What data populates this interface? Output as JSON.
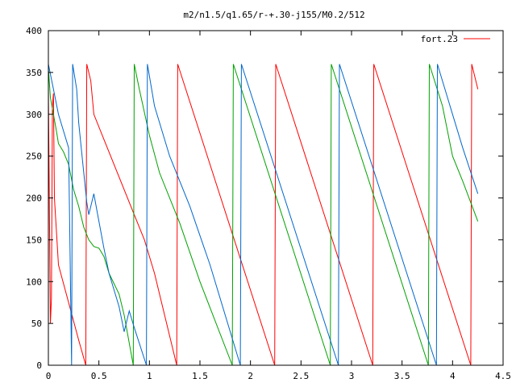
{
  "chart_data": {
    "type": "line",
    "title": "m2/n1.5/q1.65/r-+.30-j155/M0.2/512",
    "xlabel": "",
    "ylabel": "",
    "xlim": [
      0,
      4.5
    ],
    "ylim": [
      0,
      400
    ],
    "xticks": [
      0,
      0.5,
      1,
      1.5,
      2,
      2.5,
      3,
      3.5,
      4,
      4.5
    ],
    "xtick_labels": [
      "0",
      "0.5",
      "1",
      "1.5",
      "2",
      "2.5",
      "3",
      "3.5",
      "4",
      "4.5"
    ],
    "yticks": [
      0,
      50,
      100,
      150,
      200,
      250,
      300,
      350,
      400
    ],
    "ytick_labels": [
      "0",
      "50",
      "100",
      "150",
      "200",
      "250",
      "300",
      "350",
      "400"
    ],
    "grid": false,
    "legend_position": "top-right",
    "series": [
      {
        "name": "fort.23",
        "color": "#ff0000",
        "points": [
          [
            0.0,
            0
          ],
          [
            0.0,
            330
          ],
          [
            0.02,
            50
          ],
          [
            0.03,
            80
          ],
          [
            0.04,
            310
          ],
          [
            0.05,
            325
          ],
          [
            0.06,
            200
          ],
          [
            0.1,
            120
          ],
          [
            0.2,
            75
          ],
          [
            0.3,
            30
          ],
          [
            0.37,
            0
          ],
          [
            0.38,
            360
          ],
          [
            0.42,
            340
          ],
          [
            0.45,
            300
          ],
          [
            0.55,
            270
          ],
          [
            0.7,
            225
          ],
          [
            0.85,
            180
          ],
          [
            0.95,
            150
          ],
          [
            1.05,
            110
          ],
          [
            1.27,
            0
          ],
          [
            1.28,
            360
          ],
          [
            2.24,
            0
          ],
          [
            2.25,
            360
          ],
          [
            3.21,
            0
          ],
          [
            3.22,
            360
          ],
          [
            4.18,
            0
          ],
          [
            4.19,
            360
          ],
          [
            4.25,
            330
          ]
        ]
      },
      {
        "name": "",
        "color": "#00a000",
        "points": [
          [
            0.0,
            0
          ],
          [
            0.0,
            355
          ],
          [
            0.02,
            320
          ],
          [
            0.05,
            300
          ],
          [
            0.08,
            280
          ],
          [
            0.1,
            265
          ],
          [
            0.15,
            255
          ],
          [
            0.2,
            240
          ],
          [
            0.25,
            210
          ],
          [
            0.3,
            190
          ],
          [
            0.35,
            165
          ],
          [
            0.4,
            150
          ],
          [
            0.45,
            142
          ],
          [
            0.5,
            140
          ],
          [
            0.55,
            130
          ],
          [
            0.6,
            110
          ],
          [
            0.7,
            85
          ],
          [
            0.75,
            60
          ],
          [
            0.84,
            0
          ],
          [
            0.85,
            360
          ],
          [
            0.9,
            330
          ],
          [
            1.0,
            275
          ],
          [
            1.1,
            230
          ],
          [
            1.3,
            170
          ],
          [
            1.5,
            100
          ],
          [
            1.82,
            0
          ],
          [
            1.83,
            360
          ],
          [
            2.79,
            0
          ],
          [
            2.8,
            360
          ],
          [
            3.76,
            0
          ],
          [
            3.77,
            360
          ],
          [
            3.9,
            310
          ],
          [
            4.0,
            250
          ],
          [
            4.1,
            220
          ],
          [
            4.25,
            172
          ]
        ]
      },
      {
        "name": "",
        "color": "#0066cc",
        "points": [
          [
            0.0,
            0
          ],
          [
            0.0,
            360
          ],
          [
            0.05,
            330
          ],
          [
            0.1,
            300
          ],
          [
            0.2,
            260
          ],
          [
            0.23,
            0
          ],
          [
            0.24,
            360
          ],
          [
            0.28,
            330
          ],
          [
            0.3,
            290
          ],
          [
            0.35,
            230
          ],
          [
            0.38,
            195
          ],
          [
            0.4,
            180
          ],
          [
            0.45,
            205
          ],
          [
            0.48,
            185
          ],
          [
            0.55,
            140
          ],
          [
            0.6,
            110
          ],
          [
            0.7,
            70
          ],
          [
            0.75,
            40
          ],
          [
            0.8,
            65
          ],
          [
            0.85,
            45
          ],
          [
            0.97,
            0
          ],
          [
            0.98,
            360
          ],
          [
            1.05,
            310
          ],
          [
            1.2,
            250
          ],
          [
            1.4,
            190
          ],
          [
            1.6,
            120
          ],
          [
            1.9,
            0
          ],
          [
            1.91,
            360
          ],
          [
            2.87,
            0
          ],
          [
            2.88,
            360
          ],
          [
            3.84,
            0
          ],
          [
            3.85,
            360
          ],
          [
            4.0,
            300
          ],
          [
            4.1,
            260
          ],
          [
            4.25,
            205
          ]
        ]
      }
    ]
  }
}
